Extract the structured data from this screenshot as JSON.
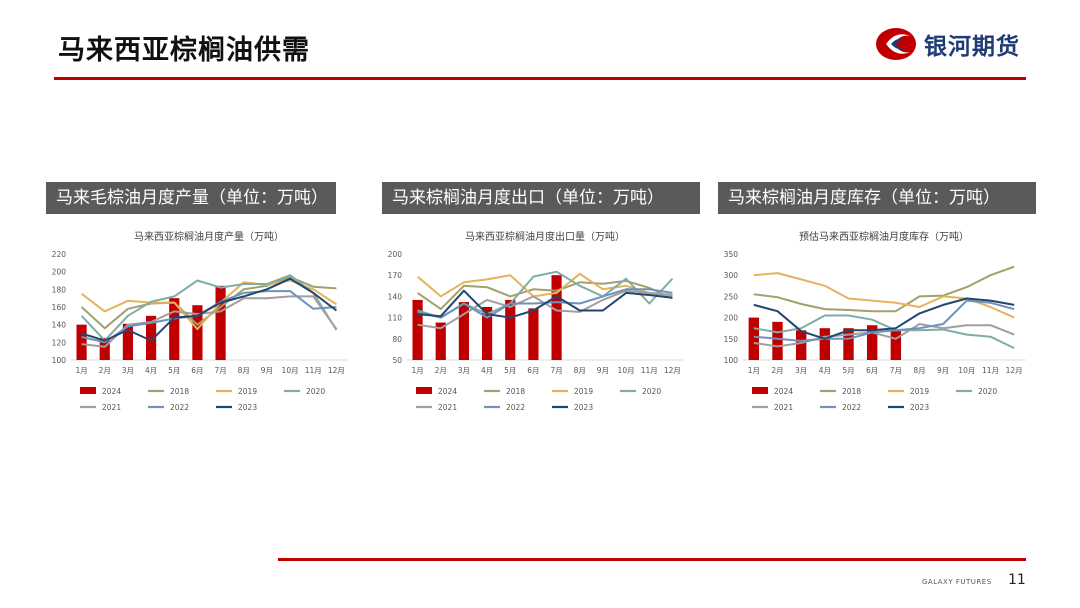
{
  "page": {
    "title": "马来西亚棕榈油供需",
    "logo_text": "银河期货",
    "footer_brand": "GALAXY FUTURES",
    "page_number": "11"
  },
  "colors": {
    "accent": "#c00000",
    "header_bg": "#5a5a5a",
    "2024": "#c00000",
    "2018": "#a3a06b",
    "2019": "#e6b25c",
    "2020": "#7fada6",
    "2021": "#a59d9b",
    "2022": "#6a93bd",
    "2023": "#23466e"
  },
  "chart_data": [
    {
      "type": "bar+line",
      "header": "马来毛棕油月度产量（单位：万吨）",
      "title": "马来西亚棕榈油月度产量（万吨）",
      "categories": [
        "1月",
        "2月",
        "3月",
        "4月",
        "5月",
        "6月",
        "7月",
        "8月",
        "9月",
        "10月",
        "11月",
        "12月"
      ],
      "ylim": [
        100,
        220
      ],
      "yticks": [
        100,
        120,
        140,
        160,
        180,
        200,
        220
      ],
      "bars": {
        "name": "2024",
        "values": [
          140,
          125,
          141,
          150,
          170,
          162,
          184
        ]
      },
      "series": [
        {
          "name": "2018",
          "values": [
            160,
            136,
            158,
            164,
            165,
            140,
            160,
            180,
            184,
            194,
            183,
            181
          ]
        },
        {
          "name": "2019",
          "values": [
            175,
            155,
            167,
            165,
            165,
            135,
            165,
            188,
            185,
            190,
            180,
            163
          ]
        },
        {
          "name": "2020",
          "values": [
            150,
            122,
            150,
            166,
            172,
            190,
            182,
            186,
            186,
            196,
            176,
            134
          ]
        },
        {
          "name": "2021",
          "values": [
            118,
            115,
            140,
            143,
            155,
            152,
            155,
            170,
            170,
            172,
            172,
            135
          ]
        },
        {
          "name": "2022",
          "values": [
            126,
            120,
            138,
            142,
            147,
            150,
            166,
            176,
            178,
            178,
            158,
            160
          ]
        },
        {
          "name": "2023",
          "values": [
            130,
            122,
            134,
            122,
            148,
            150,
            165,
            172,
            180,
            192,
            176,
            156
          ]
        }
      ]
    },
    {
      "type": "bar+line",
      "header": "马来棕榈油月度出口（单位：万吨）",
      "title": "马来西亚棕榈油月度出口量（万吨）",
      "categories": [
        "1月",
        "2月",
        "3月",
        "4月",
        "5月",
        "6月",
        "7月",
        "8月",
        "9月",
        "10月",
        "11月",
        "12月"
      ],
      "ylim": [
        50,
        200
      ],
      "yticks": [
        50,
        80,
        110,
        140,
        170,
        200
      ],
      "bars": {
        "name": "2024",
        "values": [
          135,
          103,
          132,
          125,
          135,
          123,
          170
        ]
      },
      "series": [
        {
          "name": "2018",
          "values": [
            145,
            122,
            155,
            153,
            140,
            150,
            148,
            160,
            158,
            162,
            152,
            137
          ]
        },
        {
          "name": "2019",
          "values": [
            168,
            140,
            160,
            164,
            170,
            140,
            145,
            172,
            150,
            155,
            145,
            140
          ]
        },
        {
          "name": "2020",
          "values": [
            120,
            110,
            130,
            115,
            130,
            168,
            175,
            155,
            140,
            165,
            130,
            165
          ]
        },
        {
          "name": "2021",
          "values": [
            100,
            95,
            115,
            135,
            125,
            140,
            120,
            118,
            135,
            148,
            145,
            142
          ]
        },
        {
          "name": "2022",
          "values": [
            118,
            110,
            130,
            110,
            130,
            130,
            132,
            130,
            140,
            150,
            150,
            145
          ]
        },
        {
          "name": "2023",
          "values": [
            115,
            112,
            148,
            115,
            110,
            120,
            140,
            120,
            120,
            145,
            142,
            138
          ]
        }
      ]
    },
    {
      "type": "bar+line",
      "header": "马来棕榈油月度库存（单位：万吨）",
      "title": "预估马来西亚棕榈油月度库存（万吨）",
      "categories": [
        "1月",
        "2月",
        "3月",
        "4月",
        "5月",
        "6月",
        "7月",
        "8月",
        "9月",
        "10月",
        "11月",
        "12月"
      ],
      "ylim": [
        100,
        350
      ],
      "yticks": [
        100,
        150,
        200,
        250,
        300,
        350
      ],
      "bars": {
        "name": "2024",
        "values": [
          200,
          190,
          170,
          175,
          175,
          182,
          170
        ]
      },
      "series": [
        {
          "name": "2018",
          "values": [
            255,
            248,
            232,
            220,
            218,
            215,
            215,
            250,
            252,
            272,
            300,
            320
          ]
        },
        {
          "name": "2019",
          "values": [
            300,
            305,
            290,
            275,
            245,
            240,
            235,
            225,
            250,
            245,
            225,
            200
          ]
        },
        {
          "name": "2020",
          "values": [
            175,
            165,
            175,
            205,
            205,
            195,
            170,
            170,
            172,
            160,
            155,
            128
          ]
        },
        {
          "name": "2021",
          "values": [
            140,
            132,
            140,
            155,
            160,
            165,
            150,
            185,
            175,
            182,
            182,
            160
          ]
        },
        {
          "name": "2022",
          "values": [
            155,
            150,
            145,
            150,
            150,
            165,
            170,
            175,
            185,
            240,
            235,
            220
          ]
        },
        {
          "name": "2023",
          "values": [
            230,
            215,
            168,
            150,
            170,
            170,
            175,
            210,
            230,
            245,
            240,
            230
          ]
        }
      ]
    }
  ]
}
